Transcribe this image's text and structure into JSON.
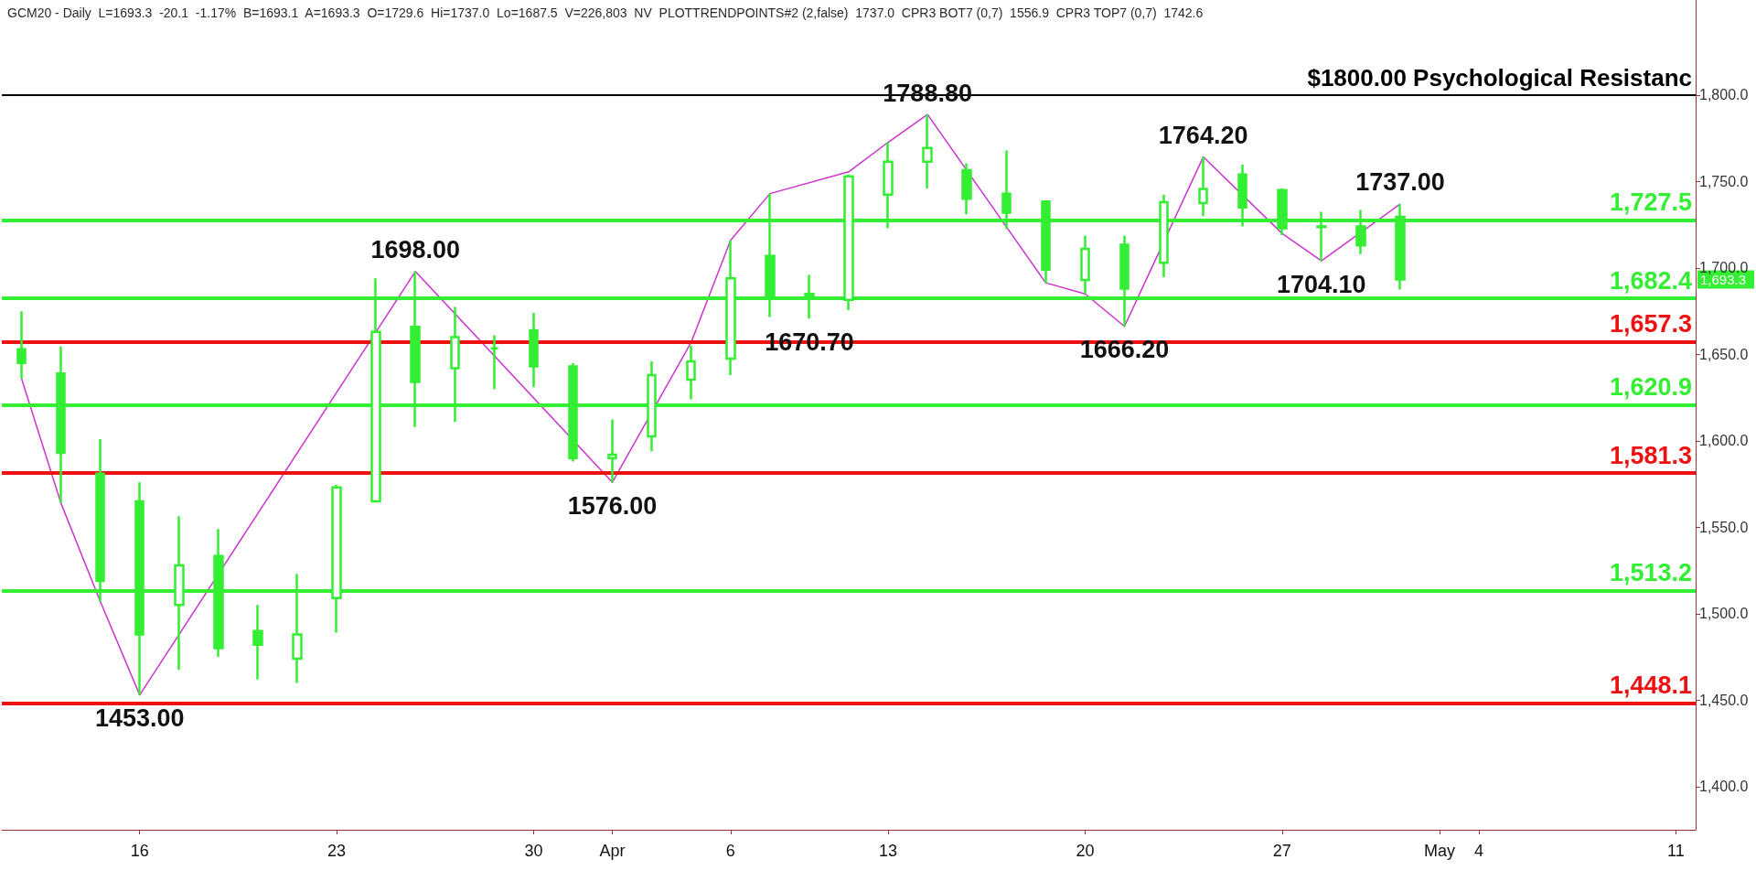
{
  "chart_data": {
    "type": "candlestick",
    "title": "GCM20 - Daily  L=1693.3  -20.1  -1.17%  B=1693.1  A=1693.3  O=1729.6  Hi=1737.0  Lo=1687.5  V=226,803  NV  PLOTTRENDPOINTS#2 (2,false)  1737.0  CPR3 BOT7 (0,7)  1556.9  CPR3 TOP7 (0,7)  1742.6",
    "categories": [
      null,
      null,
      null,
      "16",
      null,
      null,
      null,
      null,
      "23",
      null,
      null,
      null,
      null,
      "30",
      null,
      "Apr",
      null,
      null,
      "6",
      null,
      null,
      null,
      "13",
      null,
      null,
      null,
      null,
      "20",
      null,
      null,
      null,
      null,
      "27",
      null,
      null,
      null,
      "May",
      "4",
      null,
      null,
      null,
      null,
      "11"
    ],
    "color": "#33ee33",
    "ohlc": [
      [
        1653,
        1675,
        1636,
        1645
      ],
      [
        1639,
        1654.5,
        1564,
        1593
      ],
      [
        1581,
        1601,
        1507,
        1519
      ],
      [
        1565,
        1576,
        1453,
        1488
      ],
      [
        1505,
        1556.4,
        1467.5,
        1528
      ],
      [
        1533.4,
        1549,
        1475,
        1480
      ],
      [
        1490,
        1505,
        1462,
        1482
      ],
      [
        1474,
        1523,
        1460,
        1488
      ],
      [
        1509,
        1574.5,
        1489,
        1573
      ],
      [
        1565,
        1694,
        1565,
        1663
      ],
      [
        1666,
        1698,
        1608,
        1634
      ],
      [
        1642,
        1677.5,
        1611,
        1660
      ],
      [
        1653.5,
        1661,
        1630,
        1653.5
      ],
      [
        1664,
        1674,
        1631,
        1643
      ],
      [
        1643,
        1645,
        1588,
        1590
      ],
      [
        1590,
        1612.4,
        1576,
        1592
      ],
      [
        1602.5,
        1646,
        1594,
        1638
      ],
      [
        1635.4,
        1655,
        1624,
        1646
      ],
      [
        1647.6,
        1716,
        1638,
        1694
      ],
      [
        1707,
        1743,
        1671.6,
        1684
      ],
      [
        1684,
        1696,
        1670.7,
        1685
      ],
      [
        1681.5,
        1754,
        1675.6,
        1753
      ],
      [
        1742.4,
        1772.7,
        1723,
        1761.5
      ],
      [
        1761.5,
        1788.8,
        1746,
        1769.4
      ],
      [
        1756.5,
        1760.5,
        1731,
        1740
      ],
      [
        1743,
        1768,
        1722.6,
        1732
      ],
      [
        1738.4,
        1739,
        1691.4,
        1699
      ],
      [
        1693,
        1718.7,
        1685,
        1711
      ],
      [
        1713.4,
        1718.7,
        1666.2,
        1688
      ],
      [
        1703,
        1742.4,
        1694.7,
        1738
      ],
      [
        1737.5,
        1764.2,
        1730,
        1745.7
      ],
      [
        1754,
        1759.8,
        1724,
        1735
      ],
      [
        1745,
        1746,
        1719,
        1723
      ],
      [
        1724,
        1732.5,
        1704.1,
        1723.6
      ],
      [
        1724,
        1733.5,
        1708,
        1713
      ],
      [
        1729.6,
        1737,
        1687.5,
        1693.3
      ],
      null,
      null,
      null,
      null,
      null,
      null,
      null
    ],
    "series": [
      {
        "type": "line",
        "color": "#cc33cc",
        "values": [
          1636,
          1564,
          1507,
          1453,
          null,
          null,
          null,
          null,
          null,
          null,
          1698,
          null,
          null,
          null,
          null,
          1576,
          null,
          1657,
          1716,
          1743,
          null,
          1755.6,
          1772.7,
          1788.8,
          null,
          null,
          1691.4,
          1685,
          1666.2,
          null,
          1764.2,
          null,
          1720,
          1704.1,
          null,
          1737,
          null,
          null,
          null,
          null,
          null,
          null,
          null
        ]
      }
    ],
    "marker": "none",
    "ylim": [
      1375,
      1855
    ],
    "yticks": [
      {
        "value": 1400,
        "label": "1,400.0"
      },
      {
        "value": 1450,
        "label": "1,450.0"
      },
      {
        "value": 1500,
        "label": "1,500.0"
      },
      {
        "value": 1550,
        "label": "1,550.0"
      },
      {
        "value": 1600,
        "label": "1,600.0"
      },
      {
        "value": 1650,
        "label": "1,650.0"
      },
      {
        "value": 1700,
        "label": "1,700.0"
      },
      {
        "value": 1750,
        "label": "1,750.0"
      },
      {
        "value": 1800,
        "label": "1,800.0"
      }
    ],
    "ref_lines": [
      {
        "axis": "y",
        "value": 1800,
        "label": "$1800.00 Psychological Resistanc",
        "color": "#000000"
      },
      {
        "axis": "y",
        "value": 1727.5,
        "label": "1,727.5",
        "color": "#33ee33"
      },
      {
        "axis": "y",
        "value": 1682.4,
        "label": "1,682.4",
        "color": "#33ee33"
      },
      {
        "axis": "y",
        "value": 1657.3,
        "label": "1,657.3",
        "color": "#ee1111"
      },
      {
        "axis": "y",
        "value": 1620.9,
        "label": "1,620.9",
        "color": "#33ee33"
      },
      {
        "axis": "y",
        "value": 1581.3,
        "label": "1,581.3",
        "color": "#ee1111"
      },
      {
        "axis": "y",
        "value": 1513.2,
        "label": "1,513.2",
        "color": "#33ee33"
      },
      {
        "axis": "y",
        "value": 1448.1,
        "label": "1,448.1",
        "color": "#ee1111"
      }
    ],
    "annotations": [
      {
        "text": "1453.00",
        "x": "16",
        "y": 1453
      },
      {
        "text": "1698.00",
        "y": 1698
      },
      {
        "text": "1576.00",
        "x": "Apr",
        "y": 1576
      },
      {
        "text": "1670.70",
        "y": 1670.7
      },
      {
        "text": "1788.80",
        "y": 1788.8
      },
      {
        "text": "1666.20",
        "y": 1666.2
      },
      {
        "text": "1764.20",
        "y": 1764.2
      },
      {
        "text": "1704.10",
        "y": 1704.1
      },
      {
        "text": "1737.00",
        "y": 1737
      },
      "1,693.3"
    ]
  }
}
